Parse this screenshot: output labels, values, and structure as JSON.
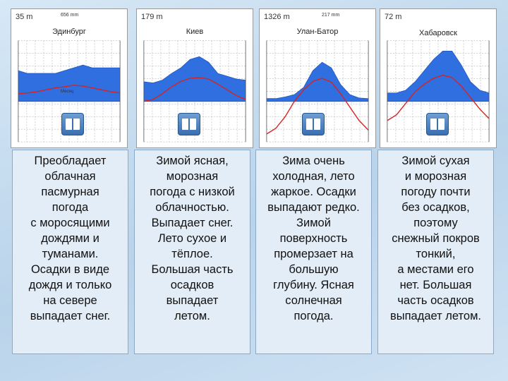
{
  "charts": [
    {
      "altitude": "35 m",
      "precip": "656 mm",
      "city": "Эдинбург",
      "xlabel": "Месяц",
      "precip_profile": [
        0.55,
        0.5,
        0.5,
        0.5,
        0.5,
        0.55,
        0.6,
        0.65,
        0.6,
        0.6,
        0.6,
        0.6
      ],
      "temp_profile": [
        0.2,
        0.22,
        0.25,
        0.3,
        0.35,
        0.38,
        0.42,
        0.4,
        0.35,
        0.3,
        0.25,
        0.22
      ]
    },
    {
      "altitude": "179 m",
      "precip": "",
      "city": "Киев",
      "xlabel": "",
      "precip_profile": [
        0.35,
        0.33,
        0.38,
        0.5,
        0.6,
        0.75,
        0.8,
        0.7,
        0.5,
        0.45,
        0.4,
        0.38
      ],
      "temp_profile": [
        0.0,
        0.05,
        0.2,
        0.38,
        0.52,
        0.6,
        0.62,
        0.58,
        0.45,
        0.3,
        0.15,
        0.05
      ]
    },
    {
      "altitude": "1326 m",
      "precip": "217 mm",
      "city": "Улан-Батор",
      "xlabel": "",
      "precip_profile": [
        0.05,
        0.05,
        0.08,
        0.12,
        0.25,
        0.55,
        0.7,
        0.6,
        0.3,
        0.12,
        0.06,
        0.05
      ],
      "temp_profile": [
        -0.85,
        -0.7,
        -0.4,
        0.0,
        0.3,
        0.52,
        0.6,
        0.5,
        0.2,
        -0.15,
        -0.5,
        -0.75
      ]
    },
    {
      "altitude": "72 m",
      "precip": "",
      "city": "Хабаровск",
      "xlabel": "",
      "precip_profile": [
        0.15,
        0.15,
        0.2,
        0.35,
        0.55,
        0.75,
        0.9,
        0.9,
        0.65,
        0.35,
        0.2,
        0.15
      ],
      "temp_profile": [
        -0.5,
        -0.35,
        -0.05,
        0.25,
        0.45,
        0.6,
        0.68,
        0.62,
        0.4,
        0.1,
        -0.2,
        -0.45
      ]
    }
  ],
  "descriptions": [
    "Преобладает\nоблачная\nпасмурная\nпогода\nс моросящими\nдождями и\nтуманами.\nОсадки в виде\nдождя и только\nна севере\nвыпадает снег.",
    "Зимой ясная,\nморозная\nпогода с низкой\nоблачностью.\nВыпадает снег.\nЛето сухое и\nтёплое.\nБольшая часть\nосадков\nвыпадает\nлетом.",
    "Зима очень\nхолодная, лето\nжаркое. Осадки\nвыпадают редко.\nЗимой\nповерхность\nпромерзает на\nбольшую\nглубину. Ясная\nсолнечная\nпогода.",
    "Зимой сухая\nи морозная\nпогоду почти\nбез осадков,\nпоэтому\nснежный покров\nтонкий,\nа местами его\nнет. Большая\nчасть осадков\nвыпадает летом."
  ],
  "colors": {
    "precip": "#2f6fe0",
    "temp": "#d8231f",
    "grid": "#9aa4b0"
  },
  "icons": [
    "book-icon",
    "book-icon",
    "book-icon",
    "book-icon"
  ]
}
